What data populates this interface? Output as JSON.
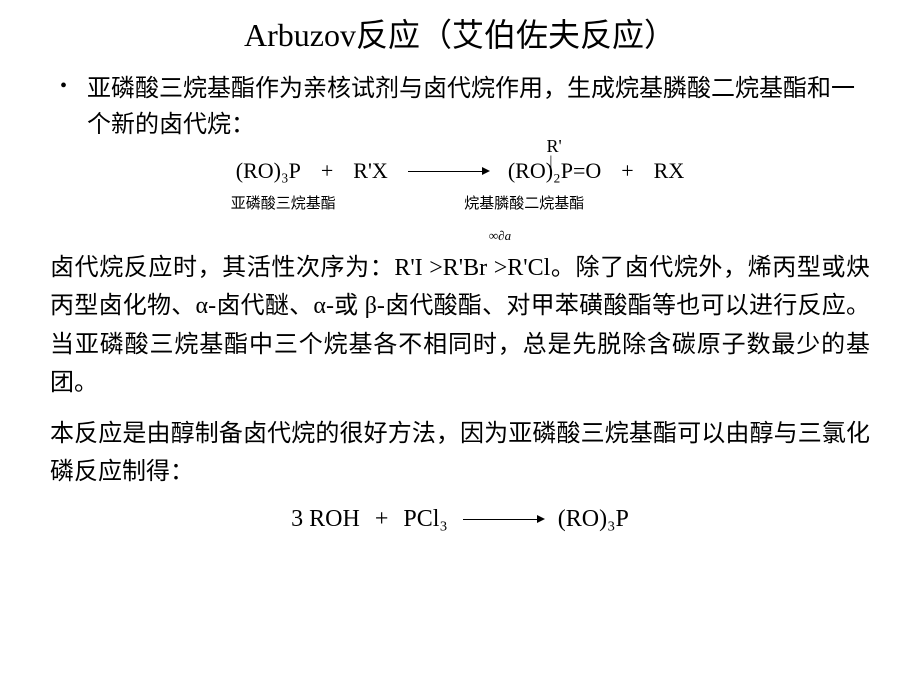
{
  "title": "Arbuzov反应（艾伯佐夫反应）",
  "bullet_intro": "亚磷酸三烷基酯作为亲核试剂与卤代烷作用，生成烷基膦酸二烷基酯和一个新的卤代烷：",
  "equation1": {
    "reactant1": "(RO)₃P",
    "plus1": "+",
    "reactant2": "R'X",
    "r_prime_top": "R'",
    "product1": "(RO)₂P=O",
    "plus2": "+",
    "product2": "RX",
    "label_left": "亚磷酸三烷基酯",
    "label_right": "烷基膦酸二烷基酯"
  },
  "small_symbol": "∞∂a",
  "body_para1": "卤代烷反应时，其活性次序为：R'I >R'Br >R'Cl。除了卤代烷外，烯丙型或炔丙型卤化物、α-卤代醚、α-或 β-卤代酸酯、对甲苯磺酸酯等也可以进行反应。当亚磷酸三烷基酯中三个烷基各不相同时，总是先脱除含碳原子数最少的基团。",
  "body_para2": "本反应是由醇制备卤代烷的很好方法，因为亚磷酸三烷基酯可以由醇与三氯化磷反应制得：",
  "equation2": {
    "reactant1": "3 ROH",
    "plus": "+",
    "reactant2": "PCl₃",
    "product": "(RO)₃P"
  },
  "colors": {
    "background": "#ffffff",
    "text": "#000000"
  },
  "fonts": {
    "title_size": 32,
    "body_size": 24,
    "equation_size": 22,
    "label_size": 15
  }
}
